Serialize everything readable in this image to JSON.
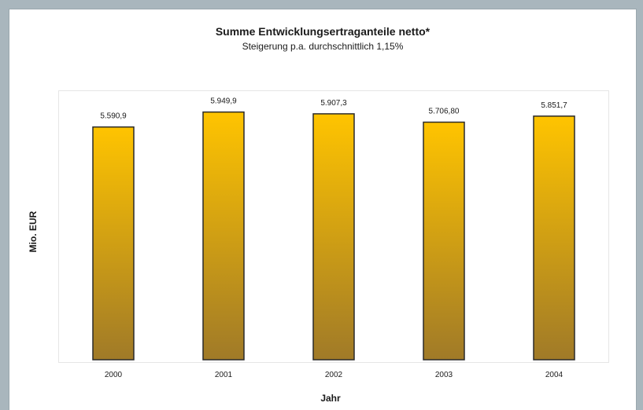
{
  "chart_data": {
    "type": "bar",
    "title": "Summe Entwicklungsertraganteile netto*",
    "subtitle": "Steigerung p.a. durchschnittlich 1,15%",
    "xlabel": "Jahr",
    "ylabel": "Mio. EUR",
    "categories": [
      "2000",
      "2001",
      "2002",
      "2003",
      "2004"
    ],
    "values": [
      5590.9,
      5949.9,
      5907.3,
      5706.8,
      5851.7
    ],
    "data_labels": [
      "5.590,9",
      "5.949,9",
      "5.907,3",
      "5.706,80",
      "5.851,7"
    ],
    "ylim": [
      0,
      7000
    ],
    "grid": false,
    "legend": "none",
    "colors": {
      "bar_top": "#ffc400",
      "bar_bottom": "#a07a28",
      "bar_stroke": "#2a2a2a",
      "background": "#a9b6bd"
    }
  }
}
